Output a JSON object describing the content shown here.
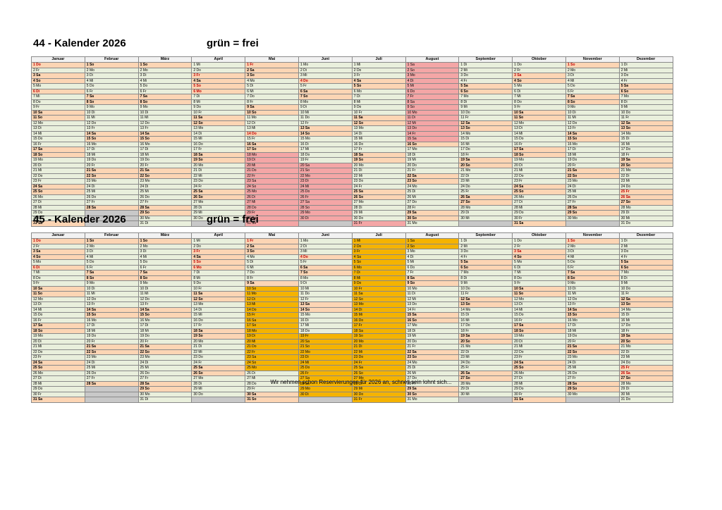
{
  "calendars": [
    {
      "title": "44 - Kalender 2026",
      "legend": "grün = frei"
    },
    {
      "title": "45 - Kalender 2026",
      "legend": "grün = frei"
    }
  ],
  "months": [
    "Januar",
    "Februar",
    "März",
    "April",
    "Mai",
    "Juni",
    "Juli",
    "August",
    "September",
    "Oktober",
    "November",
    "Dezember"
  ],
  "weekdays": [
    "Mo",
    "Di",
    "Mi",
    "Do",
    "Fr",
    "Sa",
    "So"
  ],
  "holidays": [
    "1-1",
    "1-6",
    "4-3",
    "4-5",
    "4-6",
    "5-1",
    "5-14",
    "5-24",
    "5-25",
    "6-4",
    "10-3",
    "11-1",
    "12-25",
    "12-26"
  ],
  "footer": "Wir nehmen schon Reservierungen für 2026 an, schnell sein lohnt sich..."
}
